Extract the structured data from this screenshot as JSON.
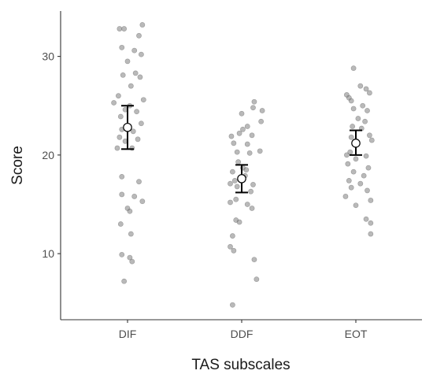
{
  "chart_data": {
    "type": "scatter",
    "xlabel": "TAS subscales",
    "ylabel": "Score",
    "categories": [
      "DIF",
      "DDF",
      "EOT"
    ],
    "ylim": [
      3.3,
      34.6
    ],
    "yticks": [
      10,
      20,
      30
    ],
    "grid": false,
    "legend": "none",
    "point_color": "#808080",
    "summary_color": "#000000",
    "summary": [
      {
        "category": "DIF",
        "mean": 22.8,
        "lower": 20.6,
        "upper": 25.0
      },
      {
        "category": "DDF",
        "mean": 17.6,
        "lower": 16.2,
        "upper": 19.0
      },
      {
        "category": "EOT",
        "mean": 21.2,
        "lower": 20.0,
        "upper": 22.5
      }
    ],
    "points": {
      "DIF": [
        {
          "x": -0.07,
          "y": 32.8
        },
        {
          "x": -0.03,
          "y": 32.8
        },
        {
          "x": 0.13,
          "y": 33.2
        },
        {
          "x": 0.1,
          "y": 32.1
        },
        {
          "x": -0.05,
          "y": 30.9
        },
        {
          "x": 0.06,
          "y": 30.6
        },
        {
          "x": 0.12,
          "y": 30.2
        },
        {
          "x": 0.0,
          "y": 29.5
        },
        {
          "x": 0.07,
          "y": 28.3
        },
        {
          "x": -0.04,
          "y": 28.1
        },
        {
          "x": 0.11,
          "y": 27.9
        },
        {
          "x": 0.03,
          "y": 27.0
        },
        {
          "x": -0.08,
          "y": 26.0
        },
        {
          "x": 0.14,
          "y": 25.6
        },
        {
          "x": -0.12,
          "y": 25.3
        },
        {
          "x": 0.02,
          "y": 25.0
        },
        {
          "x": -0.02,
          "y": 24.6
        },
        {
          "x": 0.08,
          "y": 24.4
        },
        {
          "x": -0.06,
          "y": 23.9
        },
        {
          "x": 0.12,
          "y": 23.2
        },
        {
          "x": -0.05,
          "y": 22.6
        },
        {
          "x": 0.05,
          "y": 22.4
        },
        {
          "x": -0.07,
          "y": 21.8
        },
        {
          "x": 0.09,
          "y": 21.6
        },
        {
          "x": -0.02,
          "y": 21.4
        },
        {
          "x": -0.09,
          "y": 20.7
        },
        {
          "x": 0.04,
          "y": 20.7
        },
        {
          "x": -0.05,
          "y": 17.8
        },
        {
          "x": 0.1,
          "y": 17.3
        },
        {
          "x": -0.05,
          "y": 16.0
        },
        {
          "x": 0.06,
          "y": 15.8
        },
        {
          "x": 0.13,
          "y": 15.3
        },
        {
          "x": 0.0,
          "y": 14.6
        },
        {
          "x": 0.02,
          "y": 14.3
        },
        {
          "x": -0.06,
          "y": 13.0
        },
        {
          "x": 0.03,
          "y": 12.0
        },
        {
          "x": -0.05,
          "y": 9.9
        },
        {
          "x": 0.02,
          "y": 9.6
        },
        {
          "x": 0.04,
          "y": 9.2
        },
        {
          "x": -0.03,
          "y": 7.2
        }
      ],
      "DDF": [
        {
          "x": 0.11,
          "y": 25.4
        },
        {
          "x": 0.1,
          "y": 24.8
        },
        {
          "x": 0.18,
          "y": 24.5
        },
        {
          "x": 0.0,
          "y": 24.2
        },
        {
          "x": 0.17,
          "y": 23.4
        },
        {
          "x": 0.05,
          "y": 22.9
        },
        {
          "x": 0.01,
          "y": 22.6
        },
        {
          "x": -0.02,
          "y": 22.2
        },
        {
          "x": 0.09,
          "y": 22.0
        },
        {
          "x": -0.09,
          "y": 21.9
        },
        {
          "x": -0.07,
          "y": 21.2
        },
        {
          "x": 0.05,
          "y": 21.1
        },
        {
          "x": 0.16,
          "y": 20.4
        },
        {
          "x": -0.04,
          "y": 20.3
        },
        {
          "x": 0.07,
          "y": 20.2
        },
        {
          "x": -0.03,
          "y": 19.3
        },
        {
          "x": 0.01,
          "y": 18.7
        },
        {
          "x": 0.04,
          "y": 18.5
        },
        {
          "x": -0.08,
          "y": 18.3
        },
        {
          "x": 0.03,
          "y": 17.9
        },
        {
          "x": -0.06,
          "y": 17.4
        },
        {
          "x": -0.1,
          "y": 17.1
        },
        {
          "x": 0.1,
          "y": 17.0
        },
        {
          "x": -0.04,
          "y": 16.8
        },
        {
          "x": 0.08,
          "y": 16.3
        },
        {
          "x": -0.05,
          "y": 15.5
        },
        {
          "x": -0.1,
          "y": 15.2
        },
        {
          "x": 0.05,
          "y": 15.0
        },
        {
          "x": 0.09,
          "y": 14.6
        },
        {
          "x": -0.05,
          "y": 13.4
        },
        {
          "x": -0.02,
          "y": 13.2
        },
        {
          "x": -0.08,
          "y": 11.8
        },
        {
          "x": -0.1,
          "y": 10.7
        },
        {
          "x": 0.11,
          "y": 9.4
        },
        {
          "x": 0.13,
          "y": 7.4
        },
        {
          "x": -0.07,
          "y": 10.3
        },
        {
          "x": -0.08,
          "y": 4.8
        }
      ],
      "EOT": [
        {
          "x": -0.02,
          "y": 28.8
        },
        {
          "x": 0.04,
          "y": 27.0
        },
        {
          "x": 0.09,
          "y": 26.7
        },
        {
          "x": 0.12,
          "y": 26.3
        },
        {
          "x": -0.08,
          "y": 26.1
        },
        {
          "x": -0.06,
          "y": 25.8
        },
        {
          "x": -0.04,
          "y": 25.5
        },
        {
          "x": 0.06,
          "y": 25.0
        },
        {
          "x": -0.02,
          "y": 24.7
        },
        {
          "x": 0.1,
          "y": 24.5
        },
        {
          "x": 0.02,
          "y": 23.7
        },
        {
          "x": 0.08,
          "y": 23.4
        },
        {
          "x": -0.03,
          "y": 22.9
        },
        {
          "x": 0.05,
          "y": 22.7
        },
        {
          "x": 0.12,
          "y": 22.0
        },
        {
          "x": -0.04,
          "y": 21.8
        },
        {
          "x": 0.14,
          "y": 21.5
        },
        {
          "x": 0.0,
          "y": 21.1
        },
        {
          "x": -0.05,
          "y": 20.3
        },
        {
          "x": -0.08,
          "y": 20.0
        },
        {
          "x": 0.09,
          "y": 19.9
        },
        {
          "x": 0.0,
          "y": 19.6
        },
        {
          "x": -0.07,
          "y": 19.1
        },
        {
          "x": 0.11,
          "y": 18.7
        },
        {
          "x": -0.02,
          "y": 18.3
        },
        {
          "x": 0.07,
          "y": 17.9
        },
        {
          "x": -0.06,
          "y": 17.4
        },
        {
          "x": 0.04,
          "y": 17.1
        },
        {
          "x": -0.04,
          "y": 16.7
        },
        {
          "x": 0.1,
          "y": 16.4
        },
        {
          "x": -0.09,
          "y": 15.8
        },
        {
          "x": 0.13,
          "y": 15.4
        },
        {
          "x": 0.0,
          "y": 14.9
        },
        {
          "x": 0.09,
          "y": 13.5
        },
        {
          "x": 0.13,
          "y": 13.1
        },
        {
          "x": 0.13,
          "y": 12.0
        }
      ]
    }
  }
}
